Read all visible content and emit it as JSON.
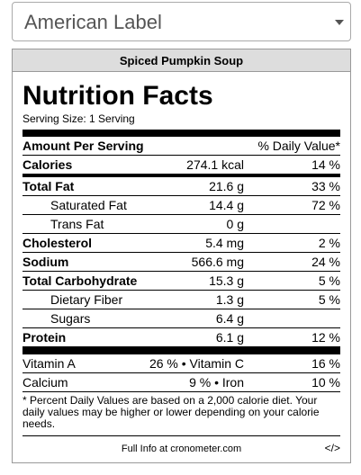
{
  "selector": {
    "label": "American Label"
  },
  "label": {
    "title": "Spiced Pumpkin Soup",
    "heading": "Nutrition Facts",
    "serving": "Serving Size: 1 Serving",
    "header": [
      "Amount Per Serving",
      "% Daily Value*"
    ],
    "calories": [
      "Calories",
      "274.1 kcal",
      "14 %"
    ],
    "rows": [
      [
        "Total Fat",
        "21.6 g",
        "33 %"
      ],
      [
        "Saturated Fat",
        "14.4 g",
        "72 %"
      ],
      [
        "Trans Fat",
        "0 g",
        ""
      ],
      [
        "Cholesterol",
        "5.4 mg",
        "2 %"
      ],
      [
        "Sodium",
        "566.6 mg",
        "24 %"
      ],
      [
        "Total Carbohydrate",
        "15.3 g",
        "5 %"
      ],
      [
        "Dietary Fiber",
        "1.3 g",
        "5 %"
      ],
      [
        "Sugars",
        "6.4 g",
        ""
      ],
      [
        "Protein",
        "6.1 g",
        "12 %"
      ]
    ],
    "vitamins": [
      [
        "Vitamin A",
        "26 % • Vitamin C",
        "16 %"
      ],
      [
        "Calcium",
        "9 % • Iron",
        "10 %"
      ]
    ],
    "footnote": "* Percent Daily Values are based on a 2,000 calorie diet. Your daily values may be higher or lower depending on your calorie needs.",
    "footer": "Full Info at cronometer.com",
    "embed": "</>"
  }
}
